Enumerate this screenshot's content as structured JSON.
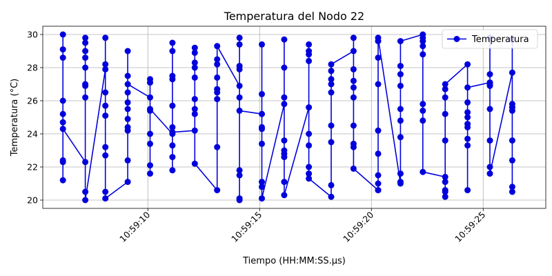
{
  "chart_data": {
    "type": "line",
    "title": "Temperatura del Nodo 22",
    "xlabel": "Tiempo (HH:MM:SS.µs)",
    "ylabel": "Temperatura (°C)",
    "xlim": [
      "10:59:05.30",
      "10:59:27.80"
    ],
    "ylim": [
      19.5,
      30.5
    ],
    "x_ticks": [
      "10:59:10",
      "10:59:15",
      "10:59:20",
      "10:59:25"
    ],
    "y_ticks": [
      20,
      22,
      24,
      26,
      28,
      30
    ],
    "grid": true,
    "legend": "upper-right",
    "colors": {
      "series": "#0000dd"
    },
    "series": [
      {
        "name": "Temperatura",
        "x": [
          "10:59:06.20",
          "10:59:06.20",
          "10:59:06.20",
          "10:59:06.20",
          "10:59:06.20",
          "10:59:06.20",
          "10:59:06.20",
          "10:59:06.20",
          "10:59:06.20",
          "10:59:06.20",
          "10:59:07.20",
          "10:59:07.20",
          "10:59:07.20",
          "10:59:07.20",
          "10:59:07.20",
          "10:59:07.20",
          "10:59:07.20",
          "10:59:07.20",
          "10:59:07.20",
          "10:59:07.20",
          "10:59:07.20",
          "10:59:08.10",
          "10:59:08.10",
          "10:59:08.10",
          "10:59:08.10",
          "10:59:08.10",
          "10:59:08.10",
          "10:59:08.10",
          "10:59:08.10",
          "10:59:08.10",
          "10:59:08.10",
          "10:59:09.10",
          "10:59:09.10",
          "10:59:09.10",
          "10:59:09.10",
          "10:59:09.10",
          "10:59:09.10",
          "10:59:09.10",
          "10:59:09.10",
          "10:59:09.10",
          "10:59:09.10",
          "10:59:09.10",
          "10:59:10.10",
          "10:59:10.10",
          "10:59:10.10",
          "10:59:10.10",
          "10:59:10.10",
          "10:59:10.10",
          "10:59:10.10",
          "10:59:10.10",
          "10:59:10.10",
          "10:59:11.10",
          "10:59:11.10",
          "10:59:11.10",
          "10:59:11.10",
          "10:59:11.10",
          "10:59:11.10",
          "10:59:11.10",
          "10:59:11.10",
          "10:59:11.10",
          "10:59:11.10",
          "10:59:11.10",
          "10:59:12.10",
          "10:59:12.10",
          "10:59:12.10",
          "10:59:12.10",
          "10:59:12.10",
          "10:59:12.10",
          "10:59:12.10",
          "10:59:12.10",
          "10:59:12.10",
          "10:59:12.10",
          "10:59:13.10",
          "10:59:13.10",
          "10:59:13.10",
          "10:59:13.10",
          "10:59:13.10",
          "10:59:13.10",
          "10:59:13.10",
          "10:59:13.10",
          "10:59:13.10",
          "10:59:14.10",
          "10:59:14.10",
          "10:59:14.10",
          "10:59:14.10",
          "10:59:14.10",
          "10:59:14.10",
          "10:59:14.10",
          "10:59:14.10",
          "10:59:14.10",
          "10:59:14.10",
          "10:59:14.10",
          "10:59:15.10",
          "10:59:15.10",
          "10:59:15.10",
          "10:59:15.10",
          "10:59:15.10",
          "10:59:15.10",
          "10:59:15.10",
          "10:59:15.10",
          "10:59:15.10",
          "10:59:16.10",
          "10:59:16.10",
          "10:59:16.10",
          "10:59:16.10",
          "10:59:16.10",
          "10:59:16.10",
          "10:59:16.10",
          "10:59:16.10",
          "10:59:16.10",
          "10:59:16.10",
          "10:59:17.20",
          "10:59:17.20",
          "10:59:17.20",
          "10:59:17.20",
          "10:59:17.20",
          "10:59:17.20",
          "10:59:17.20",
          "10:59:17.20",
          "10:59:17.20",
          "10:59:17.20",
          "10:59:18.20",
          "10:59:18.20",
          "10:59:18.20",
          "10:59:18.20",
          "10:59:18.20",
          "10:59:18.20",
          "10:59:18.20",
          "10:59:18.20",
          "10:59:18.20",
          "10:59:19.20",
          "10:59:19.20",
          "10:59:19.20",
          "10:59:19.20",
          "10:59:19.20",
          "10:59:19.20",
          "10:59:19.20",
          "10:59:19.20",
          "10:59:19.20",
          "10:59:19.20",
          "10:59:20.30",
          "10:59:20.30",
          "10:59:20.30",
          "10:59:20.30",
          "10:59:20.30",
          "10:59:20.30",
          "10:59:20.30",
          "10:59:20.30",
          "10:59:20.30",
          "10:59:20.30",
          "10:59:21.30",
          "10:59:21.30",
          "10:59:21.30",
          "10:59:21.30",
          "10:59:21.30",
          "10:59:21.30",
          "10:59:21.30",
          "10:59:21.30",
          "10:59:21.30",
          "10:59:21.30",
          "10:59:22.30",
          "10:59:22.30",
          "10:59:22.30",
          "10:59:22.30",
          "10:59:22.30",
          "10:59:22.30",
          "10:59:22.30",
          "10:59:22.30",
          "10:59:22.30",
          "10:59:23.30",
          "10:59:23.30",
          "10:59:23.30",
          "10:59:23.30",
          "10:59:23.30",
          "10:59:23.30",
          "10:59:23.30",
          "10:59:23.30",
          "10:59:23.30",
          "10:59:23.30",
          "10:59:24.30",
          "10:59:24.30",
          "10:59:24.30",
          "10:59:24.30",
          "10:59:24.30",
          "10:59:24.30",
          "10:59:24.30",
          "10:59:24.30",
          "10:59:24.30",
          "10:59:24.30",
          "10:59:25.30",
          "10:59:25.30",
          "10:59:25.30",
          "10:59:25.30",
          "10:59:25.30",
          "10:59:25.30",
          "10:59:25.30",
          "10:59:25.30",
          "10:59:25.30",
          "10:59:26.30",
          "10:59:26.30",
          "10:59:26.30",
          "10:59:26.30",
          "10:59:26.30",
          "10:59:26.30",
          "10:59:26.30",
          "10:59:26.30",
          "10:59:26.30"
        ],
        "y": [
          24.7,
          25.2,
          26.0,
          22.4,
          21.2,
          22.3,
          28.6,
          29.1,
          30.0,
          24.3,
          22.3,
          26.2,
          26.9,
          27.0,
          28.0,
          28.6,
          29.0,
          29.5,
          29.8,
          20.5,
          20.0,
          27.9,
          28.2,
          29.8,
          26.5,
          25.7,
          25.1,
          23.2,
          22.7,
          20.5,
          20.1,
          21.1,
          22.4,
          24.2,
          24.4,
          24.9,
          25.5,
          25.9,
          26.5,
          27.5,
          29.0,
          27.0,
          26.2,
          27.1,
          27.3,
          25.4,
          24.0,
          23.4,
          22.1,
          21.6,
          25.5,
          24.0,
          24.4,
          25.7,
          27.3,
          27.5,
          29.0,
          29.5,
          23.3,
          22.6,
          21.8,
          24.1,
          24.2,
          25.2,
          25.5,
          26.1,
          27.4,
          28.0,
          28.3,
          28.9,
          29.2,
          22.2,
          20.6,
          23.2,
          26.1,
          26.5,
          26.7,
          27.4,
          28.2,
          28.5,
          29.3,
          26.9,
          29.4,
          29.8,
          28.1,
          27.9,
          26.2,
          21.8,
          21.5,
          20.1,
          20.0,
          25.4,
          25.2,
          26.4,
          29.4,
          24.4,
          24.3,
          23.4,
          21.1,
          20.8,
          20.1,
          25.8,
          28.0,
          29.7,
          26.2,
          23.6,
          23.0,
          22.8,
          22.6,
          21.1,
          20.3,
          25.6,
          28.4,
          28.8,
          29.0,
          29.4,
          24.0,
          23.3,
          22.0,
          21.6,
          21.3,
          20.2,
          20.9,
          23.5,
          24.5,
          26.5,
          27.0,
          27.3,
          27.8,
          28.2,
          29.0,
          29.8,
          27.9,
          27.2,
          26.8,
          26.2,
          24.5,
          23.4,
          23.2,
          21.9,
          20.6,
          20.6,
          21.0,
          21.5,
          22.8,
          24.2,
          27.0,
          28.6,
          29.6,
          29.8,
          21.0,
          21.1,
          21.6,
          23.8,
          24.8,
          25.5,
          26.9,
          27.6,
          28.1,
          29.6,
          30.0,
          29.8,
          29.6,
          29.3,
          28.8,
          25.8,
          25.4,
          24.8,
          21.7,
          21.4,
          21.1,
          20.6,
          20.5,
          20.2,
          23.6,
          25.2,
          26.2,
          26.7,
          27.0,
          28.2,
          25.3,
          25.0,
          24.6,
          24.4,
          23.7,
          23.3,
          20.6,
          25.9,
          26.8,
          27.1,
          27.0,
          26.9,
          27.6,
          29.8,
          25.5,
          23.6,
          22.0,
          21.6,
          27.7,
          29.7,
          25.8,
          25.6,
          25.4,
          23.6,
          22.4,
          20.8,
          20.5
        ]
      }
    ]
  }
}
